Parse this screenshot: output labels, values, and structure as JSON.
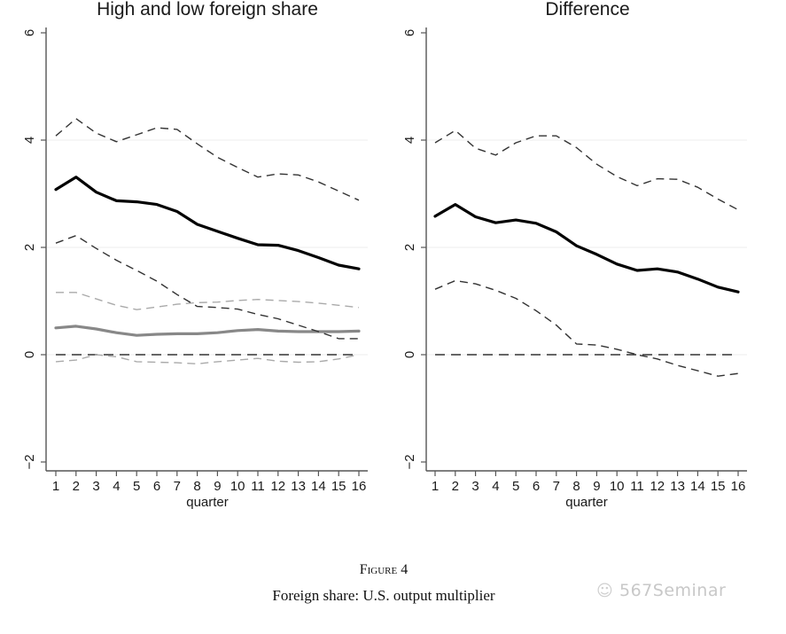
{
  "figure": {
    "label": "Figure 4",
    "caption": "Foreign share: U.S. output multiplier"
  },
  "watermark": {
    "icon": "wechat-icon",
    "text": "567Seminar"
  },
  "colors": {
    "point": "#000000",
    "band": "#333333",
    "gray_point": "#888888",
    "gray_band": "#aaaaaa",
    "zero": "#333333",
    "grid": "#ececec",
    "axis": "#555555"
  },
  "chart_data": [
    {
      "type": "line",
      "title": "High and low foreign share",
      "xlabel": "quarter",
      "ylabel": "",
      "x": [
        1,
        2,
        3,
        4,
        5,
        6,
        7,
        8,
        9,
        10,
        11,
        12,
        13,
        14,
        15,
        16
      ],
      "xticks": [
        "1",
        "2",
        "3",
        "4",
        "5",
        "6",
        "7",
        "8",
        "9",
        "10",
        "11",
        "12",
        "13",
        "14",
        "15",
        "16"
      ],
      "yticks": [
        "-2",
        "0",
        "2",
        "4",
        "6"
      ],
      "ylim": [
        -2,
        6
      ],
      "grid": true,
      "series": [
        {
          "name": "high foreign share - point estimate",
          "style": "solid-black",
          "values": [
            3.08,
            3.31,
            3.03,
            2.87,
            2.85,
            2.8,
            2.67,
            2.43,
            2.3,
            2.17,
            2.05,
            2.04,
            1.94,
            1.81,
            1.67,
            1.6
          ]
        },
        {
          "name": "high foreign share - upper band",
          "style": "dashed-black",
          "values": [
            4.08,
            4.4,
            4.13,
            3.97,
            4.1,
            4.23,
            4.2,
            3.93,
            3.68,
            3.49,
            3.31,
            3.37,
            3.35,
            3.22,
            3.05,
            2.88
          ]
        },
        {
          "name": "high foreign share - lower band",
          "style": "dashed-black",
          "values": [
            2.08,
            2.22,
            1.98,
            1.76,
            1.57,
            1.37,
            1.12,
            0.9,
            0.88,
            0.85,
            0.75,
            0.67,
            0.55,
            0.43,
            0.3,
            0.3
          ]
        },
        {
          "name": "low foreign share - point estimate",
          "style": "solid-gray",
          "values": [
            0.5,
            0.53,
            0.48,
            0.41,
            0.36,
            0.38,
            0.39,
            0.39,
            0.41,
            0.45,
            0.47,
            0.44,
            0.43,
            0.43,
            0.43,
            0.44
          ]
        },
        {
          "name": "low foreign share - upper band",
          "style": "dashed-gray",
          "values": [
            1.16,
            1.16,
            1.04,
            0.92,
            0.84,
            0.89,
            0.94,
            0.97,
            0.98,
            1.01,
            1.03,
            1.01,
            0.99,
            0.96,
            0.92,
            0.88
          ]
        },
        {
          "name": "low foreign share - lower band",
          "style": "dashed-gray",
          "values": [
            -0.13,
            -0.1,
            0.0,
            -0.04,
            -0.13,
            -0.14,
            -0.15,
            -0.17,
            -0.13,
            -0.1,
            -0.07,
            -0.12,
            -0.14,
            -0.13,
            -0.08,
            0.0
          ]
        },
        {
          "name": "zero line",
          "style": "dashed-zero",
          "values": [
            0,
            0,
            0,
            0,
            0,
            0,
            0,
            0,
            0,
            0,
            0,
            0,
            0,
            0,
            0,
            0
          ]
        }
      ]
    },
    {
      "type": "line",
      "title": "Difference",
      "xlabel": "quarter",
      "ylabel": "",
      "x": [
        1,
        2,
        3,
        4,
        5,
        6,
        7,
        8,
        9,
        10,
        11,
        12,
        13,
        14,
        15,
        16
      ],
      "xticks": [
        "1",
        "2",
        "3",
        "4",
        "5",
        "6",
        "7",
        "8",
        "9",
        "10",
        "11",
        "12",
        "13",
        "14",
        "15",
        "16"
      ],
      "yticks": [
        "-2",
        "0",
        "2",
        "4",
        "6"
      ],
      "ylim": [
        -2,
        6
      ],
      "grid": true,
      "series": [
        {
          "name": "difference - point estimate",
          "style": "solid-black",
          "values": [
            2.58,
            2.8,
            2.57,
            2.46,
            2.51,
            2.45,
            2.29,
            2.03,
            1.87,
            1.69,
            1.57,
            1.6,
            1.54,
            1.41,
            1.26,
            1.17
          ]
        },
        {
          "name": "difference - upper band",
          "style": "dashed-black",
          "values": [
            3.95,
            4.18,
            3.85,
            3.72,
            3.95,
            4.08,
            4.08,
            3.86,
            3.55,
            3.32,
            3.15,
            3.28,
            3.27,
            3.12,
            2.9,
            2.7
          ]
        },
        {
          "name": "difference - lower band",
          "style": "dashed-black",
          "values": [
            1.22,
            1.38,
            1.32,
            1.2,
            1.05,
            0.82,
            0.55,
            0.2,
            0.18,
            0.1,
            0.0,
            -0.08,
            -0.2,
            -0.3,
            -0.4,
            -0.35
          ]
        },
        {
          "name": "zero line",
          "style": "dashed-zero",
          "values": [
            0,
            0,
            0,
            0,
            0,
            0,
            0,
            0,
            0,
            0,
            0,
            0,
            0,
            0,
            0,
            0
          ]
        }
      ]
    }
  ]
}
